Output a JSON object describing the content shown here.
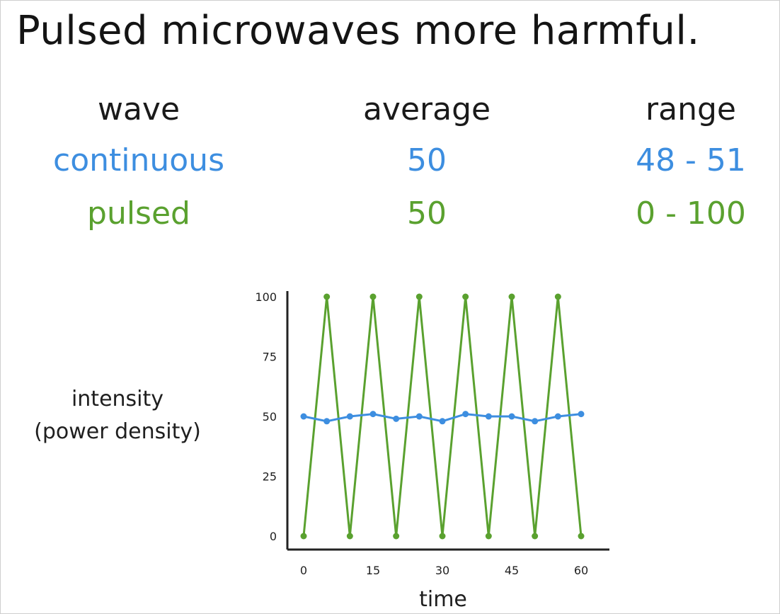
{
  "title": "Pulsed microwaves more harmful.",
  "table": {
    "headers": [
      "wave",
      "average",
      "range"
    ],
    "rows": [
      {
        "wave": "continuous",
        "average": "50",
        "range": "48 - 51",
        "color": "#3d8ee0"
      },
      {
        "wave": "pulsed",
        "average": "50",
        "range": "0 - 100",
        "color": "#5aa12f"
      }
    ]
  },
  "chart_data": {
    "type": "line",
    "title": "",
    "xlabel": "time",
    "ylabel_line1": "intensity",
    "ylabel_line2": "(power density)",
    "xlim": [
      0,
      60
    ],
    "ylim": [
      0,
      100
    ],
    "xticks": [
      0,
      15,
      30,
      45,
      60
    ],
    "yticks": [
      0,
      25,
      50,
      75,
      100
    ],
    "grid": false,
    "series": [
      {
        "color": "#5aa12f",
        "x": [
          0,
          5,
          10,
          15,
          20,
          25,
          30,
          35,
          40,
          45,
          50,
          55,
          60
        ],
        "y": [
          0,
          100,
          0,
          100,
          0,
          100,
          0,
          100,
          0,
          100,
          0,
          100,
          0
        ]
      },
      {
        "color": "#3d8ee0",
        "x": [
          0,
          5,
          10,
          15,
          20,
          25,
          30,
          35,
          40,
          45,
          50,
          55,
          60
        ],
        "y": [
          50,
          48,
          50,
          51,
          49,
          50,
          48,
          51,
          50,
          50,
          48,
          50,
          51
        ]
      }
    ]
  }
}
